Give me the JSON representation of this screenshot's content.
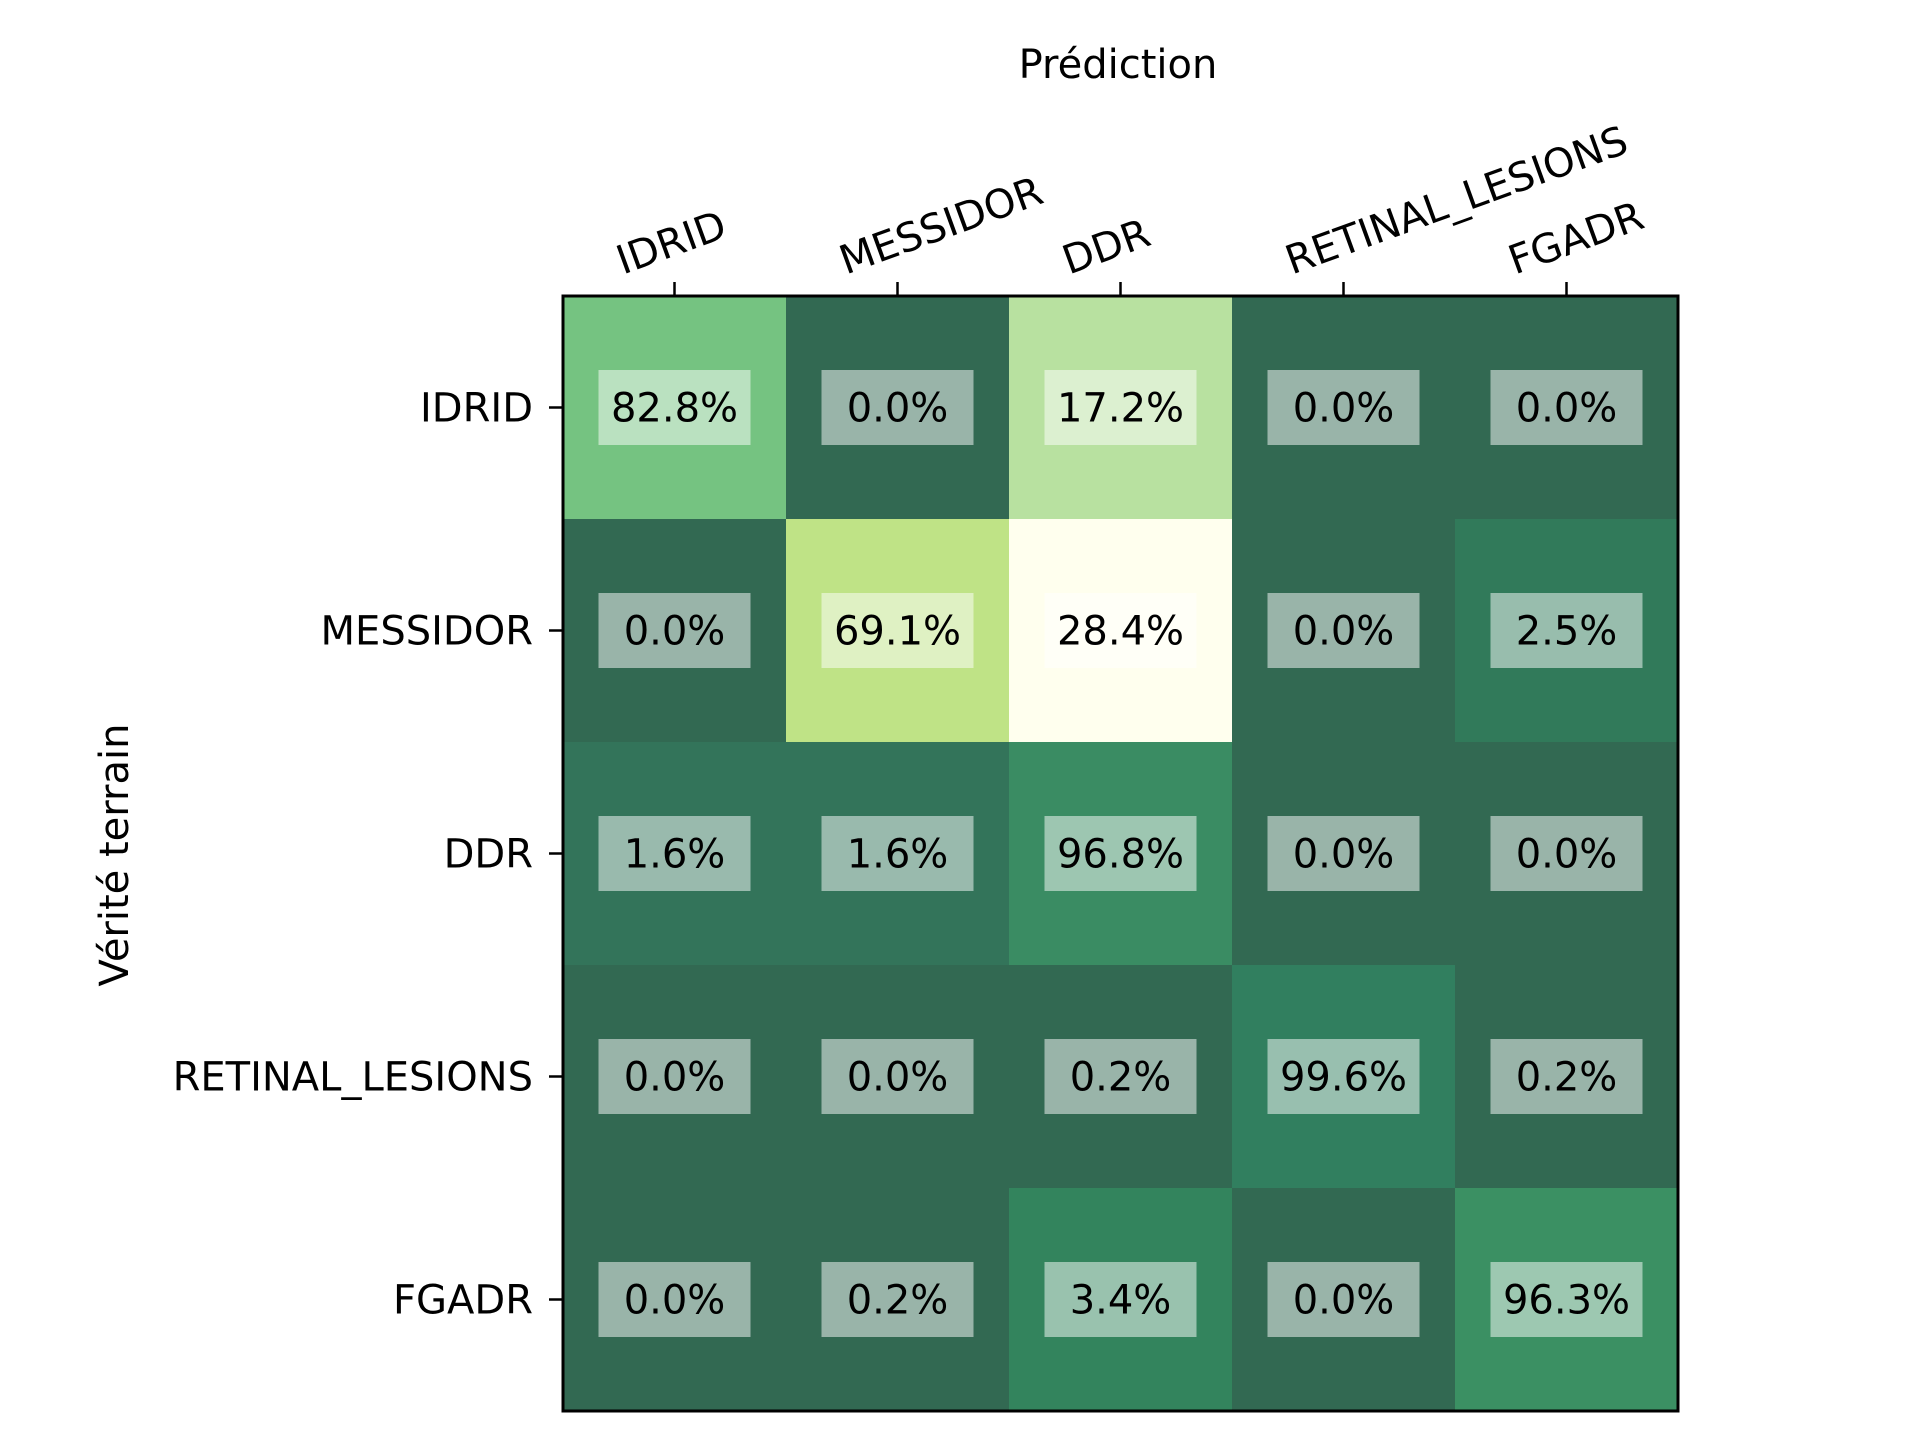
{
  "chart_data": {
    "type": "heatmap",
    "x_axis_title": "Prédiction",
    "y_axis_title": "Vérité terrain",
    "columns": [
      "IDRID",
      "MESSIDOR",
      "DDR",
      "RETINAL_LESIONS",
      "FGADR"
    ],
    "rows": [
      "IDRID",
      "MESSIDOR",
      "DDR",
      "RETINAL_LESIONS",
      "FGADR"
    ],
    "values": [
      [
        82.8,
        0.0,
        17.2,
        0.0,
        0.0
      ],
      [
        0.0,
        69.1,
        28.4,
        0.0,
        2.5
      ],
      [
        1.6,
        1.6,
        96.8,
        0.0,
        0.0
      ],
      [
        0.0,
        0.0,
        0.2,
        99.6,
        0.2
      ],
      [
        0.0,
        0.2,
        3.4,
        0.0,
        96.3
      ]
    ],
    "labels": [
      [
        "82.8%",
        "0.0%",
        "17.2%",
        "0.0%",
        "0.0%"
      ],
      [
        "0.0%",
        "69.1%",
        "28.4%",
        "0.0%",
        "2.5%"
      ],
      [
        "1.6%",
        "1.6%",
        "96.8%",
        "0.0%",
        "0.0%"
      ],
      [
        "0.0%",
        "0.0%",
        "0.2%",
        "99.6%",
        "0.2%"
      ],
      [
        "0.0%",
        "0.2%",
        "3.4%",
        "0.0%",
        "96.3%"
      ]
    ],
    "cell_colors": [
      [
        "#75c381",
        "#326952",
        "#b8e1a0",
        "#326952",
        "#326952"
      ],
      [
        "#326952",
        "#bfe386",
        "#ffffee",
        "#326952",
        "#317a5a"
      ],
      [
        "#33745a",
        "#33745a",
        "#3a8c63",
        "#326952",
        "#326952"
      ],
      [
        "#326952",
        "#326952",
        "#326952",
        "#317f5f",
        "#326952"
      ],
      [
        "#326952",
        "#326952",
        "#33845d",
        "#326952",
        "#3b9063"
      ]
    ],
    "label_box_color": "#ffffff",
    "label_box_opacity": 0.5
  }
}
